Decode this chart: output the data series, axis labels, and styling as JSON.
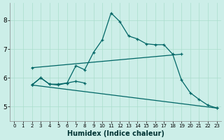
{
  "background_color": "#cceee8",
  "line_color": "#006666",
  "xlabel": "Humidex (Indice chaleur)",
  "xlim": [
    -0.5,
    23.5
  ],
  "ylim": [
    4.5,
    8.6
  ],
  "yticks": [
    5,
    6,
    7,
    8
  ],
  "xticks": [
    0,
    1,
    2,
    3,
    4,
    5,
    6,
    7,
    8,
    9,
    10,
    11,
    12,
    13,
    14,
    15,
    16,
    17,
    18,
    19,
    20,
    21,
    22,
    23
  ],
  "series": [
    {
      "x": [
        2,
        19
      ],
      "y": [
        6.35,
        6.82
      ]
    },
    {
      "x": [
        2,
        23
      ],
      "y": [
        5.75,
        4.95
      ]
    },
    {
      "x": [
        2,
        3,
        4,
        5,
        6,
        7,
        8,
        9,
        10,
        11,
        12,
        13,
        14,
        15,
        16,
        17,
        18,
        19,
        20,
        21,
        22,
        23
      ],
      "y": [
        5.75,
        6.0,
        5.78,
        5.78,
        5.82,
        6.42,
        6.28,
        6.88,
        7.32,
        8.25,
        7.95,
        7.45,
        7.35,
        7.18,
        7.15,
        7.15,
        6.82,
        5.92,
        5.48,
        5.25,
        5.05,
        4.95
      ]
    },
    {
      "x": [
        2,
        3,
        4,
        5,
        6,
        7,
        8
      ],
      "y": [
        5.75,
        6.0,
        5.78,
        5.75,
        5.82,
        5.88,
        5.82
      ]
    }
  ],
  "figsize": [
    3.2,
    2.0
  ],
  "dpi": 100
}
